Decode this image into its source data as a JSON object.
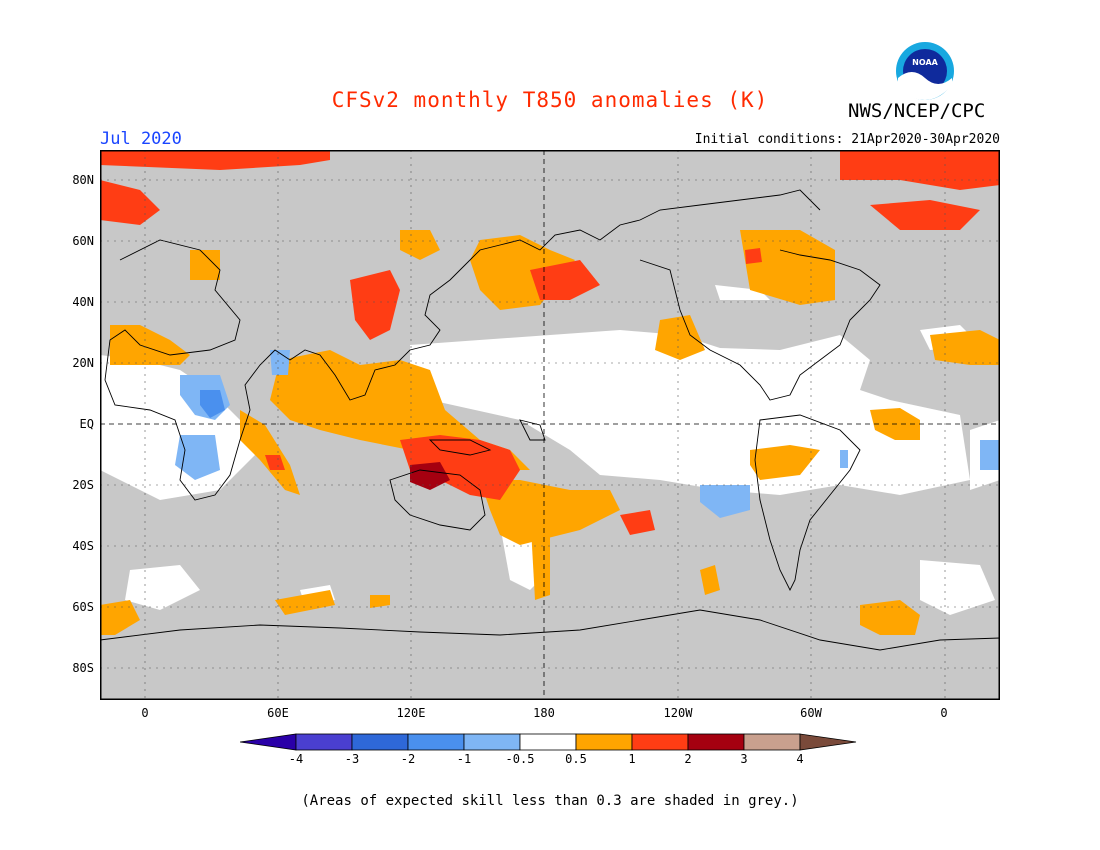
{
  "header": {
    "title": "CFSv2 monthly T850 anomalies (K)",
    "agency": "NWS/NCEP/CPC",
    "logo_text": "NOAA",
    "month": "Jul 2020",
    "initial_conditions": "Initial conditions: 21Apr2020-30Apr2020"
  },
  "axes": {
    "lat_labels": [
      "80N",
      "60N",
      "40N",
      "20N",
      "EQ",
      "20S",
      "40S",
      "60S",
      "80S"
    ],
    "lon_labels": [
      "0",
      "60E",
      "120E",
      "180",
      "120W",
      "60W",
      "0"
    ]
  },
  "colorbar": {
    "labels": [
      "-4",
      "-3",
      "-2",
      "-1",
      "-0.5",
      "0.5",
      "1",
      "2",
      "3",
      "4"
    ],
    "colors": [
      "#2a00a8",
      "#4a3fd0",
      "#2e68d8",
      "#4a90ee",
      "#7fb6f5",
      "#ffffff",
      "#ffa500",
      "#ff3d14",
      "#a50010",
      "#c9a08e",
      "#7a4a3a"
    ]
  },
  "palette": {
    "grey_skill": "#c8c8c8",
    "ocean_white": "#ffffff",
    "warm_1": "#ffa500",
    "warm_2": "#ff3d14",
    "warm_3": "#a50010",
    "cool_1": "#7fb6f5",
    "cool_2": "#4a90ee"
  },
  "footnote": "(Areas of expected skill less than 0.3 are shaded in grey.)"
}
